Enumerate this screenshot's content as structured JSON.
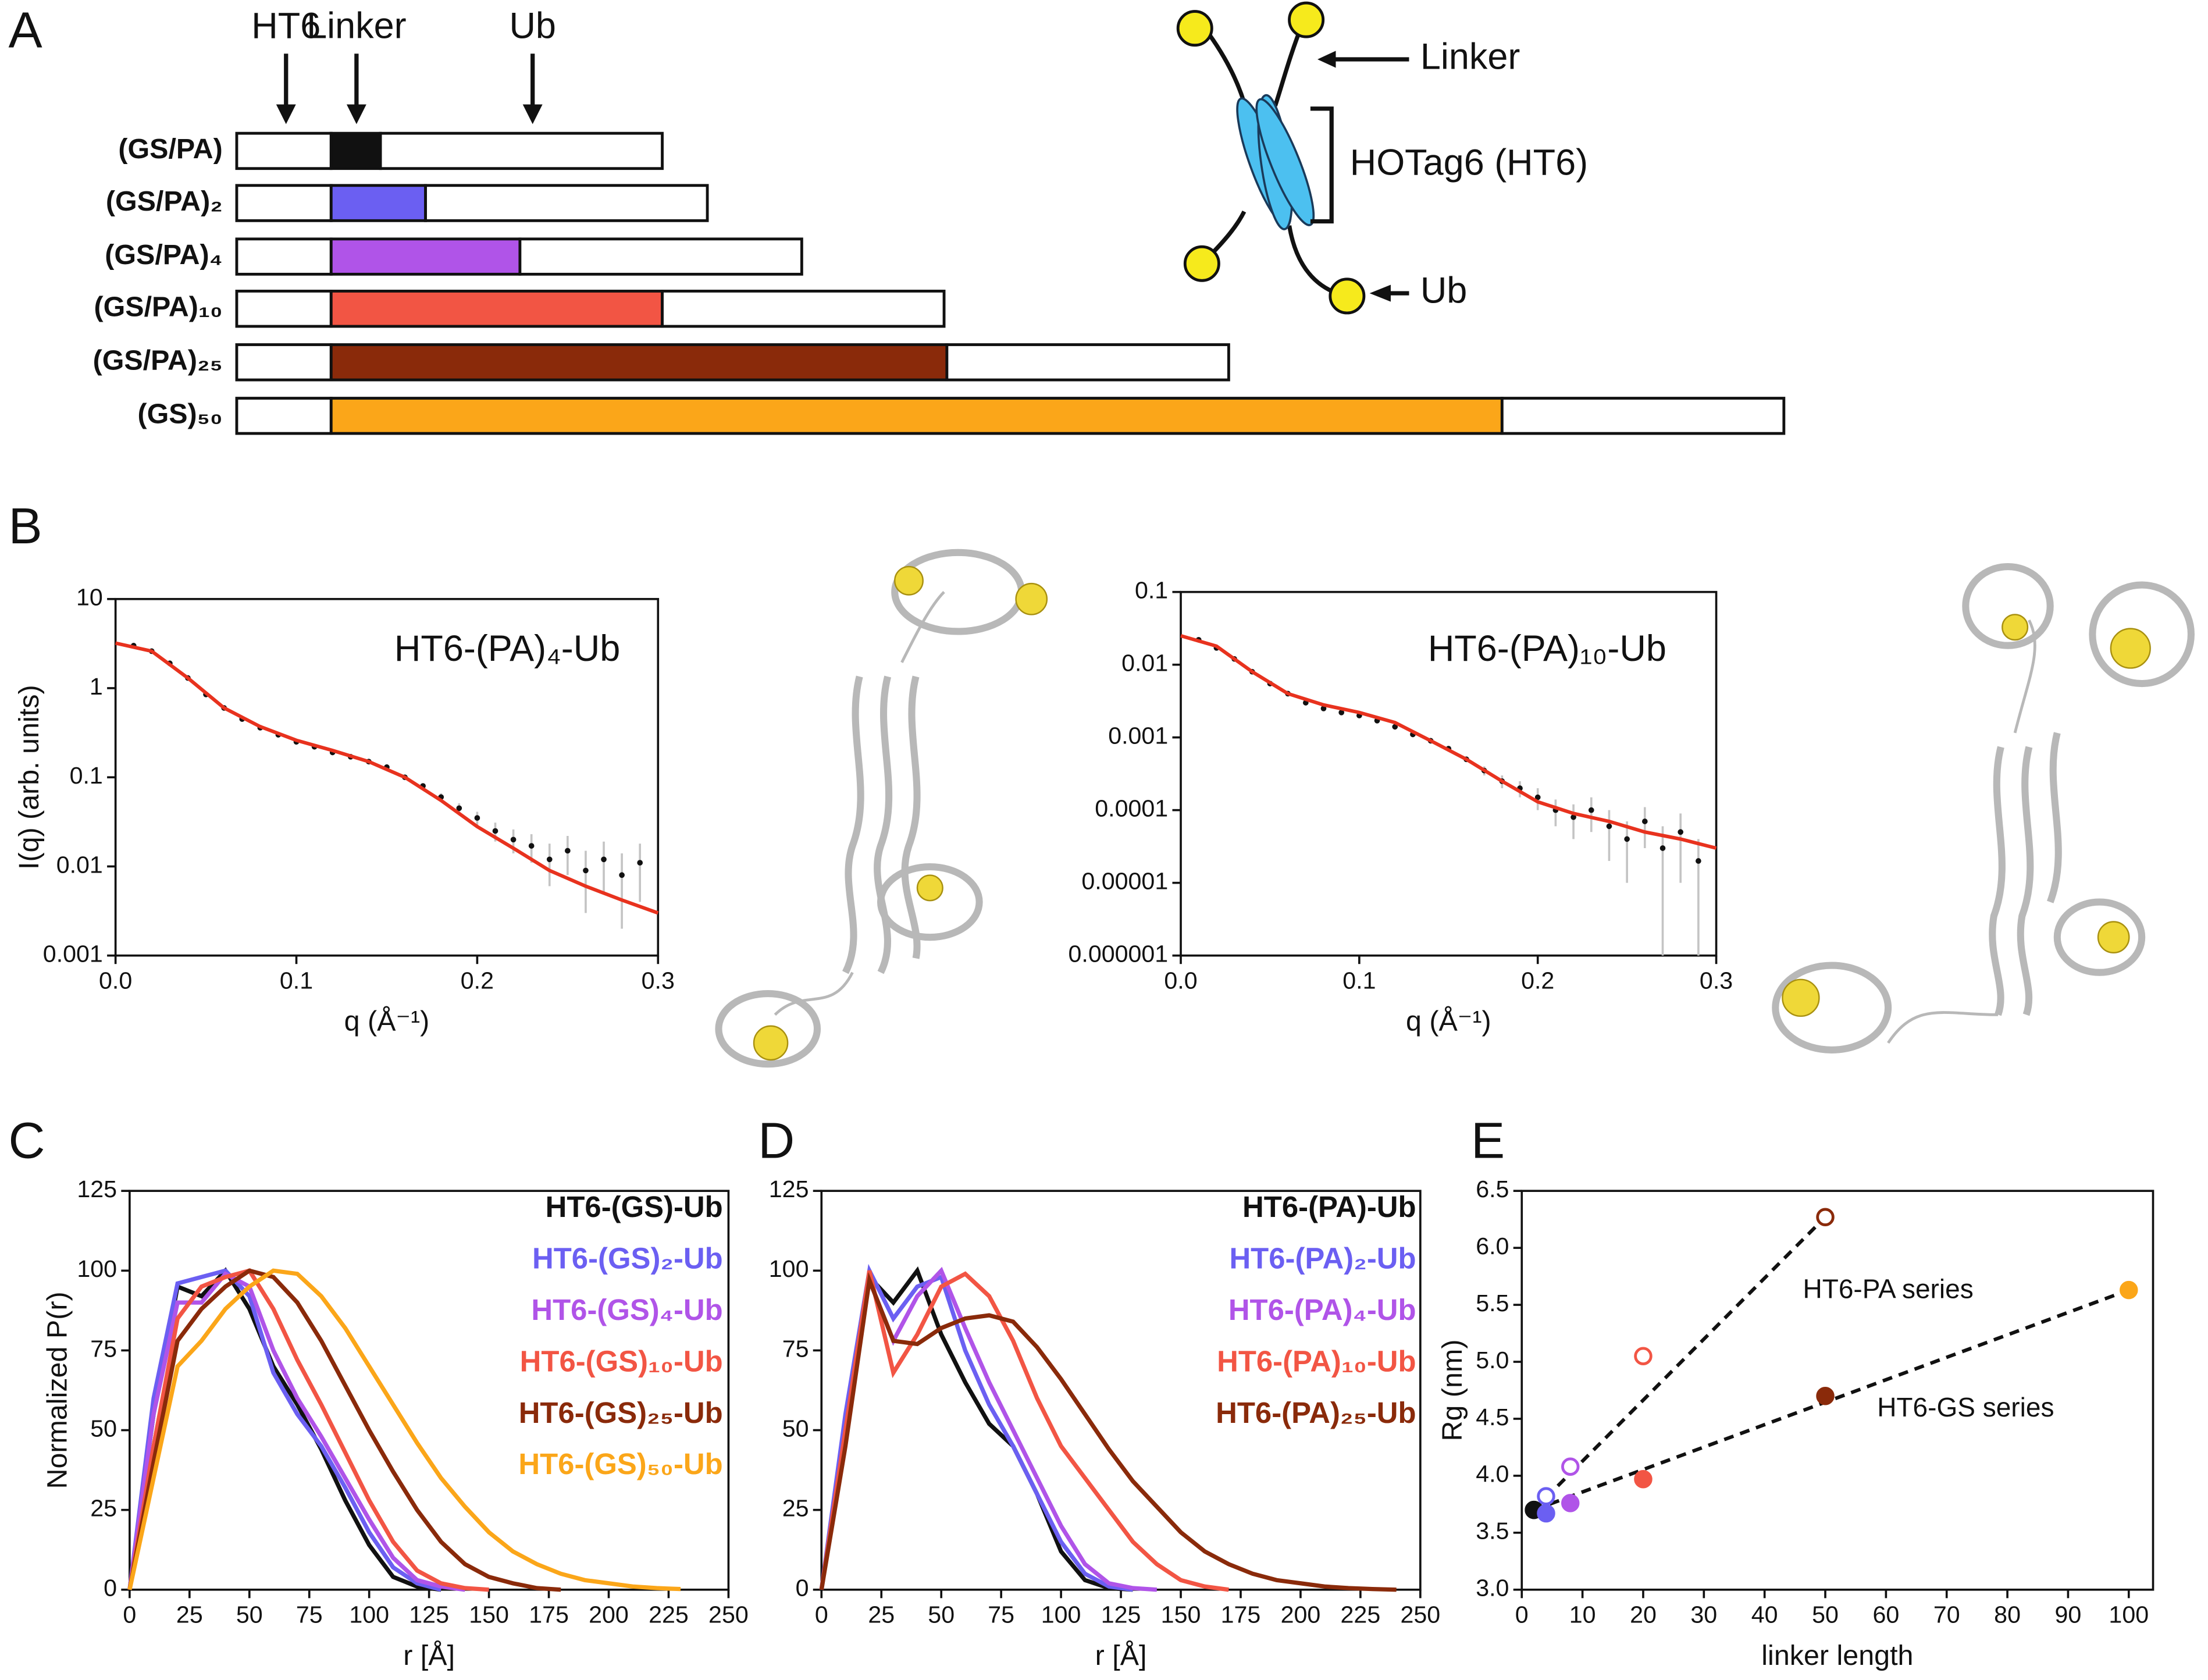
{
  "panel_labels": [
    "A",
    "B",
    "C",
    "D",
    "E"
  ],
  "schematic": {
    "arrows": [
      "HT6",
      "Linker",
      "Ub"
    ],
    "constructs": [
      "(GS/PA)",
      "(GS/PA)₂",
      "(GS/PA)₄",
      "(GS/PA)₁₀",
      "(GS/PA)₂₅",
      "(GS)₅₀"
    ],
    "linker_colors": [
      "#111111",
      "#6b5ff2",
      "#b054e8",
      "#f25544",
      "#8a2a0a",
      "#fba619"
    ],
    "cartoon": {
      "linker": "Linker",
      "domain": "HOTag6 (HT6)",
      "ub": "Ub"
    }
  },
  "chart_data": [
    {
      "type": "scatter",
      "title": "HT6-(PA)₄-Ub",
      "xlabel": "q (Å⁻¹)",
      "ylabel": "I(q) (arb. units)",
      "log_y": true,
      "xlim": [
        0,
        0.3
      ],
      "ylim": [
        0.001,
        10
      ],
      "xticks": [
        {
          "value": 0,
          "label": "0.0"
        },
        0.1,
        0.2,
        0.3
      ],
      "yticks": [
        10,
        1,
        0.1,
        0.01,
        0.001
      ],
      "color": "#111111",
      "error_color": "#c4c4c4",
      "x": [
        0.01,
        0.02,
        0.03,
        0.04,
        0.05,
        0.06,
        0.07,
        0.08,
        0.09,
        0.1,
        0.11,
        0.12,
        0.13,
        0.14,
        0.15,
        0.16,
        0.17,
        0.18,
        0.19,
        0.2,
        0.21,
        0.22,
        0.23,
        0.24,
        0.25,
        0.26,
        0.27,
        0.28,
        0.29
      ],
      "values": [
        3.0,
        2.6,
        1.9,
        1.3,
        0.85,
        0.6,
        0.45,
        0.36,
        0.3,
        0.25,
        0.22,
        0.19,
        0.17,
        0.15,
        0.13,
        0.1,
        0.08,
        0.06,
        0.045,
        0.035,
        0.025,
        0.02,
        0.017,
        0.012,
        0.015,
        0.009,
        0.012,
        0.008,
        0.011
      ],
      "errors": [
        0.02,
        0.02,
        0.02,
        0.01,
        0.01,
        0.01,
        0.01,
        0.005,
        0.005,
        0.005,
        0.005,
        0.005,
        0.005,
        0.005,
        0.005,
        0.005,
        0.005,
        0.006,
        0.006,
        0.006,
        0.006,
        0.006,
        0.006,
        0.006,
        0.007,
        0.006,
        0.007,
        0.006,
        0.007
      ],
      "fit": {
        "color": "#e8321e",
        "x": [
          0,
          0.02,
          0.04,
          0.06,
          0.08,
          0.1,
          0.12,
          0.14,
          0.16,
          0.18,
          0.2,
          0.22,
          0.24,
          0.26,
          0.28,
          0.3
        ],
        "values": [
          3.2,
          2.6,
          1.3,
          0.6,
          0.37,
          0.26,
          0.2,
          0.15,
          0.1,
          0.055,
          0.028,
          0.016,
          0.009,
          0.006,
          0.0042,
          0.003
        ]
      }
    },
    {
      "type": "scatter",
      "title": "HT6-(PA)₁₀-Ub",
      "xlabel": "q (Å⁻¹)",
      "log_y": true,
      "xlim": [
        0,
        0.3
      ],
      "ylim": [
        1e-06,
        0.1
      ],
      "xticks": [
        {
          "value": 0,
          "label": "0.0"
        },
        0.1,
        0.2,
        0.3
      ],
      "yticks": [
        0.1,
        0.01,
        0.001,
        0.0001,
        1e-05,
        1e-06
      ],
      "color": "#111111",
      "error_color": "#c4c4c4",
      "x": [
        0.01,
        0.02,
        0.03,
        0.04,
        0.05,
        0.06,
        0.07,
        0.08,
        0.09,
        0.1,
        0.11,
        0.12,
        0.13,
        0.14,
        0.15,
        0.16,
        0.17,
        0.18,
        0.19,
        0.2,
        0.21,
        0.22,
        0.23,
        0.24,
        0.25,
        0.26,
        0.27,
        0.28,
        0.29
      ],
      "values": [
        0.022,
        0.017,
        0.012,
        0.008,
        0.0055,
        0.004,
        0.003,
        0.0025,
        0.0022,
        0.002,
        0.0017,
        0.0014,
        0.0011,
        0.0009,
        0.0007,
        0.0005,
        0.00035,
        0.00025,
        0.0002,
        0.00015,
        0.0001,
        8e-05,
        0.0001,
        6e-05,
        4e-05,
        7e-05,
        3e-05,
        5e-05,
        2e-05
      ],
      "errors": [
        0.0003,
        0.0002,
        0.0002,
        0.0001,
        0.0001,
        5e-05,
        5e-05,
        3e-05,
        3e-05,
        3e-05,
        3e-05,
        3e-05,
        3e-05,
        3e-05,
        3e-05,
        3e-05,
        5e-05,
        5e-05,
        5e-05,
        5e-05,
        4e-05,
        4e-05,
        5e-05,
        4e-05,
        3e-05,
        4e-05,
        3e-05,
        4e-05,
        2e-05
      ],
      "fit": {
        "color": "#e8321e",
        "x": [
          0,
          0.02,
          0.04,
          0.06,
          0.08,
          0.1,
          0.12,
          0.14,
          0.16,
          0.18,
          0.2,
          0.22,
          0.24,
          0.26,
          0.28,
          0.3
        ],
        "values": [
          0.025,
          0.018,
          0.008,
          0.004,
          0.0028,
          0.0022,
          0.0016,
          0.0009,
          0.0005,
          0.00025,
          0.00013,
          9e-05,
          7e-05,
          5e-05,
          4e-05,
          3e-05
        ]
      }
    },
    {
      "type": "line",
      "xlabel": "r [Å]",
      "ylabel": "Normalized P(r)",
      "xlim": [
        0,
        250
      ],
      "ylim": [
        0,
        125
      ],
      "xticks": [
        0,
        25,
        50,
        75,
        100,
        125,
        150,
        175,
        200,
        225,
        250
      ],
      "yticks": [
        0,
        25,
        50,
        75,
        100,
        125
      ],
      "x": [
        0,
        10,
        20,
        30,
        40,
        50,
        60,
        70,
        80,
        90,
        100,
        110,
        120,
        130,
        140,
        150,
        160,
        170,
        180,
        190,
        200,
        210,
        220,
        230
      ],
      "series": [
        {
          "name": "HT6-(GS)-Ub",
          "color": "#111111",
          "values": [
            0,
            55,
            95,
            92,
            100,
            88,
            70,
            58,
            44,
            28,
            14,
            4,
            1,
            0,
            null,
            null,
            null,
            null,
            null,
            null,
            null,
            null,
            null,
            null
          ]
        },
        {
          "name": "HT6-(GS)₂-Ub",
          "color": "#6b5ff2",
          "values": [
            0,
            60,
            96,
            98,
            100,
            92,
            68,
            55,
            45,
            32,
            18,
            7,
            2,
            0,
            null,
            null,
            null,
            null,
            null,
            null,
            null,
            null,
            null,
            null
          ]
        },
        {
          "name": "HT6-(GS)₄-Ub",
          "color": "#b054e8",
          "values": [
            0,
            55,
            90,
            90,
            99,
            95,
            75,
            60,
            48,
            35,
            22,
            10,
            3,
            1,
            0,
            null,
            null,
            null,
            null,
            null,
            null,
            null,
            null,
            null
          ]
        },
        {
          "name": "HT6-(GS)₁₀-Ub",
          "color": "#f25544",
          "values": [
            0,
            45,
            85,
            95,
            98,
            100,
            88,
            72,
            58,
            43,
            28,
            15,
            6,
            2,
            0.5,
            0,
            null,
            null,
            null,
            null,
            null,
            null,
            null,
            null
          ]
        },
        {
          "name": "HT6-(GS)₂₅-Ub",
          "color": "#8a2a0a",
          "values": [
            0,
            40,
            78,
            88,
            95,
            100,
            98,
            90,
            78,
            64,
            50,
            37,
            25,
            15,
            8,
            4,
            2,
            0.5,
            0,
            null,
            null,
            null,
            null,
            null
          ]
        },
        {
          "name": "HT6-(GS)₅₀-Ub",
          "color": "#fba619",
          "values": [
            0,
            35,
            70,
            78,
            88,
            95,
            100,
            99,
            92,
            82,
            70,
            58,
            46,
            35,
            26,
            18,
            12,
            8,
            5,
            3,
            2,
            1,
            0.5,
            0.2
          ]
        }
      ]
    },
    {
      "type": "line",
      "xlabel": "r [Å]",
      "xlim": [
        0,
        250
      ],
      "ylim": [
        0,
        125
      ],
      "xticks": [
        0,
        25,
        50,
        75,
        100,
        125,
        150,
        175,
        200,
        225,
        250
      ],
      "yticks": [
        0,
        25,
        50,
        75,
        100,
        125
      ],
      "x": [
        0,
        10,
        20,
        30,
        40,
        50,
        60,
        70,
        80,
        90,
        100,
        110,
        120,
        130,
        140,
        150,
        160,
        170,
        180,
        190,
        200,
        210,
        220,
        230,
        240
      ],
      "series": [
        {
          "name": "HT6-(PA)-Ub",
          "color": "#111111",
          "values": [
            0,
            50,
            98,
            90,
            100,
            80,
            65,
            52,
            45,
            30,
            12,
            3,
            0.5,
            0,
            null,
            null,
            null,
            null,
            null,
            null,
            null,
            null,
            null,
            null,
            null
          ]
        },
        {
          "name": "HT6-(PA)₂-Ub",
          "color": "#6b5ff2",
          "values": [
            0,
            55,
            100,
            85,
            95,
            98,
            75,
            58,
            45,
            30,
            15,
            5,
            1,
            0,
            null,
            null,
            null,
            null,
            null,
            null,
            null,
            null,
            null,
            null,
            null
          ]
        },
        {
          "name": "HT6-(PA)₄-Ub",
          "color": "#b054e8",
          "values": [
            0,
            50,
            97,
            78,
            92,
            100,
            82,
            65,
            50,
            35,
            20,
            8,
            2,
            0.5,
            0,
            null,
            null,
            null,
            null,
            null,
            null,
            null,
            null,
            null,
            null
          ]
        },
        {
          "name": "HT6-(PA)₁₀-Ub",
          "color": "#f25544",
          "values": [
            0,
            50,
            100,
            68,
            80,
            95,
            99,
            92,
            78,
            60,
            45,
            35,
            25,
            15,
            8,
            3,
            1,
            0,
            null,
            null,
            null,
            null,
            null,
            null,
            null
          ]
        },
        {
          "name": "HT6-(PA)₂₅-Ub",
          "color": "#8a2a0a",
          "values": [
            0,
            45,
            97,
            78,
            77,
            82,
            85,
            86,
            84,
            76,
            66,
            55,
            44,
            34,
            26,
            18,
            12,
            8,
            5,
            3,
            2,
            1,
            0.5,
            0.2,
            0
          ]
        }
      ]
    },
    {
      "type": "scatter",
      "xlabel": "linker length",
      "ylabel": "Rg (nm)",
      "xlim": [
        0,
        104
      ],
      "ylim": [
        3,
        6.5
      ],
      "xticks": [
        0,
        10,
        20,
        30,
        40,
        50,
        60,
        70,
        80,
        90,
        100
      ],
      "yticks": [
        {
          "value": 3,
          "label": "3.0"
        },
        3.5,
        {
          "value": 4,
          "label": "4.0"
        },
        4.5,
        {
          "value": 5,
          "label": "5.0"
        },
        5.5,
        {
          "value": 6,
          "label": "6.0"
        },
        6.5
      ],
      "series": [
        {
          "name": "HT6-PA series",
          "filled": false,
          "x": [
            2,
            4,
            8,
            20,
            50
          ],
          "values": [
            3.7,
            3.82,
            4.08,
            5.05,
            6.27
          ],
          "colors": [
            "#111111",
            "#6b5ff2",
            "#b054e8",
            "#f25544",
            "#8a2a0a"
          ]
        },
        {
          "name": "HT6-GS series",
          "filled": true,
          "x": [
            2,
            4,
            8,
            20,
            50,
            100
          ],
          "values": [
            3.7,
            3.67,
            3.76,
            3.97,
            4.7,
            5.63
          ],
          "colors": [
            "#111111",
            "#6b5ff2",
            "#b054e8",
            "#f25544",
            "#8a2a0a",
            "#fba619"
          ]
        }
      ]
    }
  ]
}
